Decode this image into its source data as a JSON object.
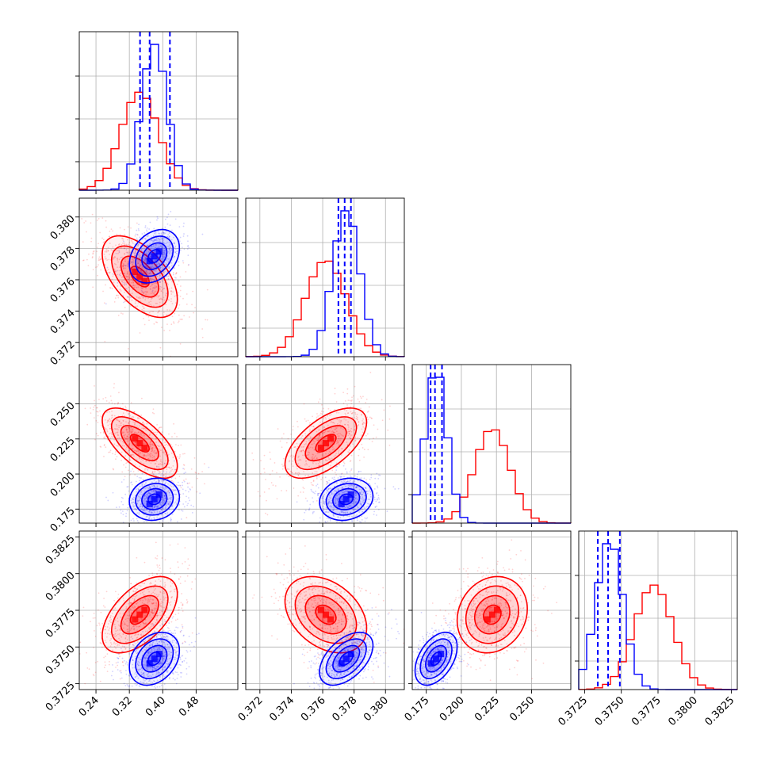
{
  "chart_data": {
    "type": "corner",
    "title": "",
    "parameters": [
      {
        "ticks": [
          0.24,
          0.32,
          0.4,
          0.48
        ],
        "tick_labels": [
          "0.24",
          "0.32",
          "0.40",
          "0.48"
        ],
        "range": [
          0.2,
          0.58
        ]
      },
      {
        "ticks": [
          0.372,
          0.374,
          0.376,
          0.378,
          0.38
        ],
        "tick_labels": [
          "0.372",
          "0.374",
          "0.376",
          "0.378",
          "0.380"
        ],
        "range": [
          0.3711,
          0.3812
        ]
      },
      {
        "ticks": [
          0.175,
          0.2,
          0.225,
          0.25
        ],
        "tick_labels": [
          "0.175",
          "0.200",
          "0.225",
          "0.250"
        ],
        "range": [
          0.165,
          0.278
        ]
      },
      {
        "ticks": [
          0.3725,
          0.375,
          0.3775,
          0.38,
          0.3825
        ],
        "tick_labels": [
          "0.3725",
          "0.3750",
          "0.3775",
          "0.3800",
          "0.3825"
        ],
        "range": [
          0.3721,
          0.3829
        ]
      }
    ],
    "series": [
      {
        "color": "#ff0000",
        "means": [
          0.345,
          0.3762,
          0.222,
          0.3772
        ],
        "sds": [
          0.045,
          0.0013,
          0.0125,
          0.0013
        ],
        "correlations": {
          "1_0": -0.55,
          "2_0": -0.65,
          "2_1": 0.6,
          "3_0": 0.55,
          "3_1": -0.35,
          "3_2": 0.15
        }
      },
      {
        "color": "#0000ff",
        "means": [
          0.38,
          0.3775,
          0.182,
          0.3742
        ],
        "sds": [
          0.03,
          0.00085,
          0.0075,
          0.0009
        ],
        "correlations": {
          "1_0": 0.3,
          "2_0": 0.1,
          "2_1": 0.15,
          "3_0": 0.3,
          "3_1": 0.5,
          "3_2": 0.45
        },
        "quantile_lines": [
          [
            0.3456,
            0.3686,
            0.4172
          ],
          [
            0.377,
            0.3774,
            0.3778
          ],
          [
            0.1781,
            0.1812,
            0.1862
          ],
          [
            0.3734,
            0.3741,
            0.3749
          ]
        ]
      }
    ],
    "grid": true,
    "legend": "none"
  }
}
